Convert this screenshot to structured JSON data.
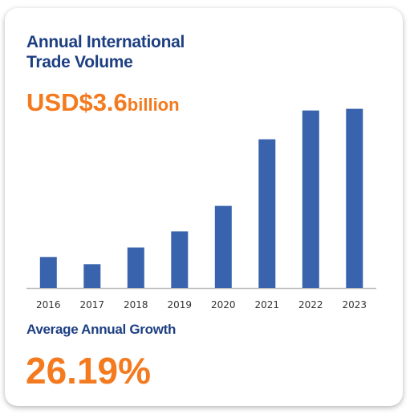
{
  "card": {
    "title_line1": "Annual International",
    "title_line2": "Trade Volume",
    "headline_value": "USD$3.6",
    "headline_unit": "billion",
    "growth_label": "Average Annual Growth",
    "growth_value": "26.19%"
  },
  "colors": {
    "title": "#1d3f82",
    "accent": "#f47a1f",
    "bar": "#3a63ad",
    "axis": "#bdbdbd"
  },
  "chart_data": {
    "type": "bar",
    "categories": [
      "2016",
      "2017",
      "2018",
      "2019",
      "2020",
      "2021",
      "2022",
      "2023"
    ],
    "values": [
      0.56,
      0.43,
      0.73,
      1.02,
      1.48,
      2.68,
      3.2,
      3.23
    ],
    "title": "",
    "xlabel": "",
    "ylabel": "",
    "ylim": [
      0,
      3.6
    ],
    "grid": false,
    "legend": "none"
  }
}
